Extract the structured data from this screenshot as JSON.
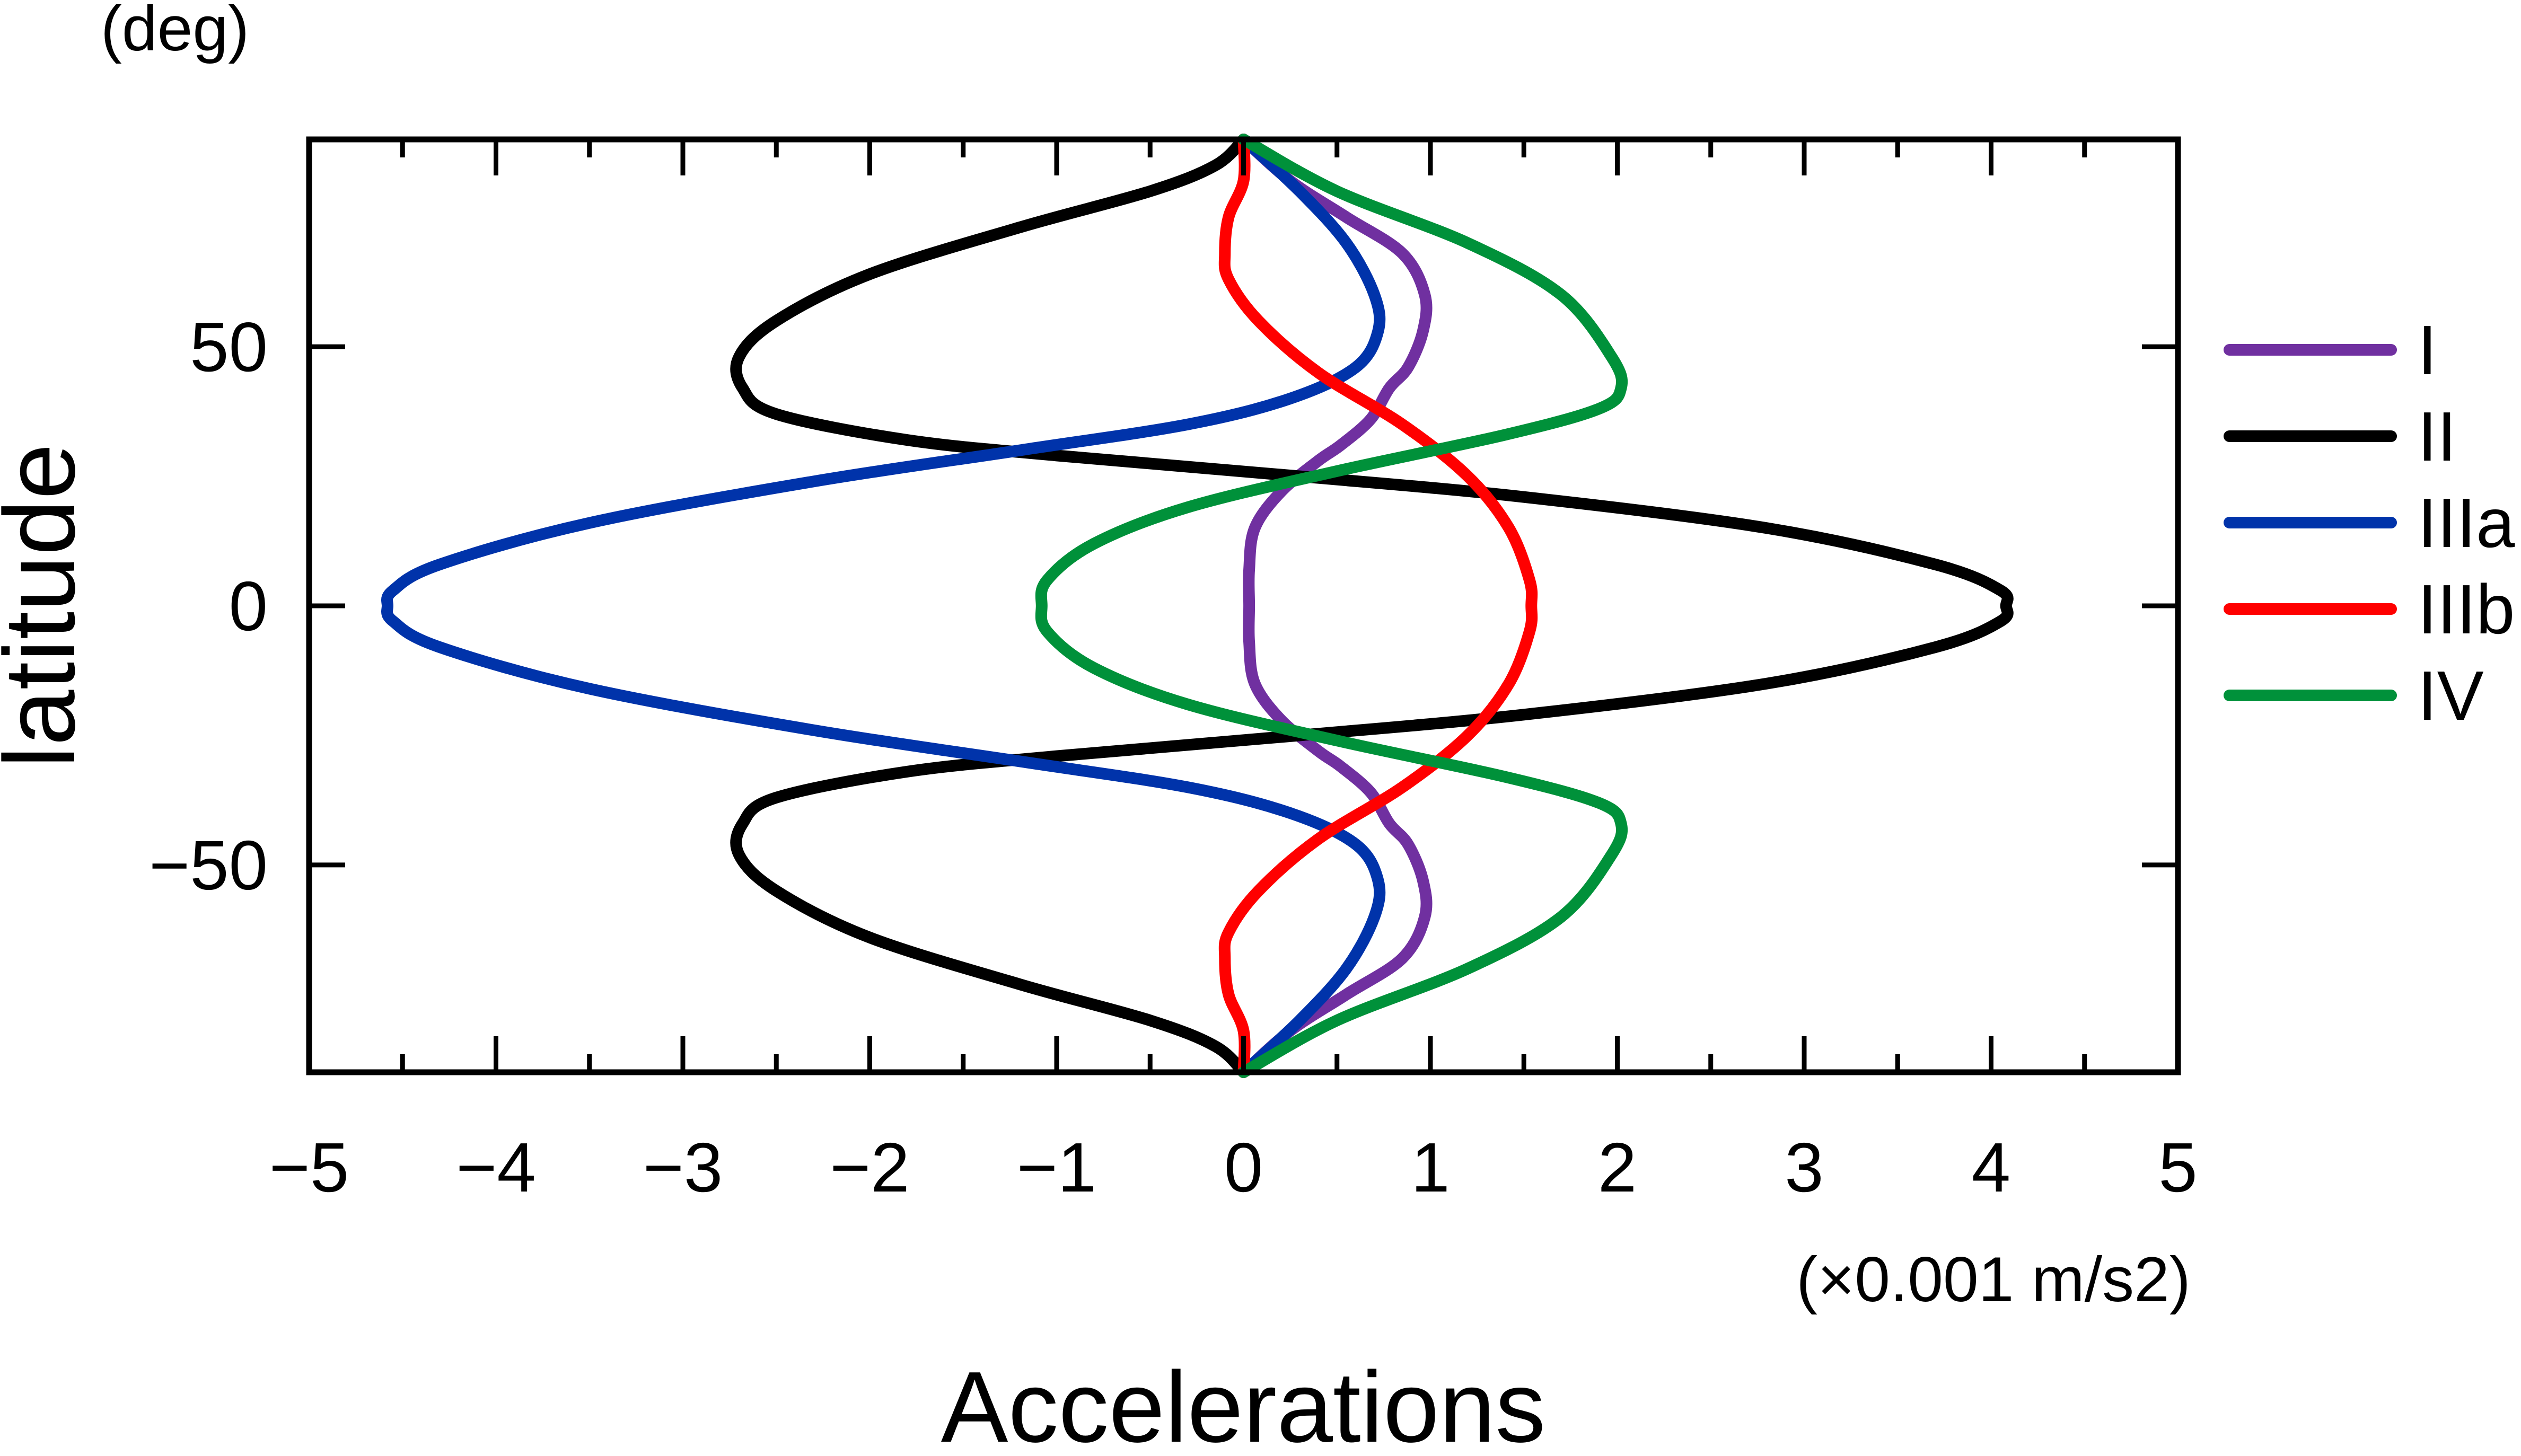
{
  "chart_data": {
    "type": "line",
    "title": "",
    "xlabel": "Accelerations",
    "x_unit": "(×0.001 m/s2)",
    "ylabel": "latitude",
    "y_unit": "(deg)",
    "xlim": [
      -5,
      5
    ],
    "ylim": [
      -90,
      90
    ],
    "x_ticks": [
      -5,
      -4,
      -3,
      -2,
      -1,
      0,
      1,
      2,
      3,
      4,
      5
    ],
    "x_tick_labels": [
      "−5",
      "−4",
      "−3",
      "−2",
      "−1",
      "0",
      "1",
      "2",
      "3",
      "4",
      "5"
    ],
    "y_ticks": [
      -50,
      0,
      50
    ],
    "y_tick_labels": [
      "−50",
      "0",
      "50"
    ],
    "grid": false,
    "legend_position": "right",
    "series": [
      {
        "name": "I",
        "color": "#7030a0",
        "points": [
          [
            0,
            90
          ],
          [
            0.25,
            82
          ],
          [
            0.55,
            75
          ],
          [
            0.85,
            68
          ],
          [
            0.97,
            60
          ],
          [
            0.96,
            53
          ],
          [
            0.88,
            46
          ],
          [
            0.78,
            42
          ],
          [
            0.68,
            36
          ],
          [
            0.52,
            31
          ],
          [
            0.4,
            28
          ],
          [
            0.2,
            22
          ],
          [
            0.06,
            15
          ],
          [
            0.03,
            7
          ],
          [
            0.03,
            0
          ],
          [
            0.03,
            -7
          ],
          [
            0.06,
            -15
          ],
          [
            0.2,
            -22
          ],
          [
            0.4,
            -28
          ],
          [
            0.52,
            -31
          ],
          [
            0.68,
            -36
          ],
          [
            0.78,
            -42
          ],
          [
            0.88,
            -46
          ],
          [
            0.96,
            -53
          ],
          [
            0.97,
            -60
          ],
          [
            0.85,
            -68
          ],
          [
            0.55,
            -75
          ],
          [
            0.25,
            -82
          ],
          [
            0,
            -90
          ]
        ]
      },
      {
        "name": "II",
        "color": "#000000",
        "points": [
          [
            0,
            90
          ],
          [
            -0.15,
            85
          ],
          [
            -0.5,
            80
          ],
          [
            -1.2,
            73
          ],
          [
            -2.0,
            64
          ],
          [
            -2.5,
            55
          ],
          [
            -2.7,
            48
          ],
          [
            -2.68,
            42
          ],
          [
            -2.5,
            37
          ],
          [
            -1.8,
            32
          ],
          [
            -1.0,
            29
          ],
          [
            0.3,
            25
          ],
          [
            1.5,
            21
          ],
          [
            2.8,
            15
          ],
          [
            3.7,
            8
          ],
          [
            4.05,
            3
          ],
          [
            4.08,
            0
          ],
          [
            4.05,
            -3
          ],
          [
            3.7,
            -8
          ],
          [
            2.8,
            -15
          ],
          [
            1.5,
            -21
          ],
          [
            0.3,
            -25
          ],
          [
            -1.0,
            -29
          ],
          [
            -1.8,
            -32
          ],
          [
            -2.5,
            -37
          ],
          [
            -2.68,
            -42
          ],
          [
            -2.7,
            -48
          ],
          [
            -2.5,
            -55
          ],
          [
            -2.0,
            -64
          ],
          [
            -1.2,
            -73
          ],
          [
            -0.5,
            -80
          ],
          [
            -0.15,
            -85
          ],
          [
            0,
            -90
          ]
        ]
      },
      {
        "name": "IIIa",
        "color": "#0033aa",
        "points": [
          [
            0,
            90
          ],
          [
            0.3,
            80
          ],
          [
            0.55,
            70
          ],
          [
            0.7,
            60
          ],
          [
            0.72,
            53
          ],
          [
            0.6,
            46
          ],
          [
            0.25,
            40
          ],
          [
            -0.3,
            35
          ],
          [
            -1.2,
            30
          ],
          [
            -2.3,
            24
          ],
          [
            -3.5,
            16
          ],
          [
            -4.3,
            8
          ],
          [
            -4.55,
            3
          ],
          [
            -4.58,
            0
          ],
          [
            -4.55,
            -3
          ],
          [
            -4.3,
            -8
          ],
          [
            -3.5,
            -16
          ],
          [
            -2.3,
            -24
          ],
          [
            -1.2,
            -30
          ],
          [
            -0.3,
            -35
          ],
          [
            0.25,
            -40
          ],
          [
            0.6,
            -46
          ],
          [
            0.72,
            -53
          ],
          [
            0.7,
            -60
          ],
          [
            0.55,
            -70
          ],
          [
            0.3,
            -80
          ],
          [
            0,
            -90
          ]
        ]
      },
      {
        "name": "IIIb",
        "color": "#ff0000",
        "points": [
          [
            0,
            90
          ],
          [
            0,
            82
          ],
          [
            -0.08,
            75
          ],
          [
            -0.1,
            68
          ],
          [
            -0.08,
            63
          ],
          [
            0.08,
            55
          ],
          [
            0.4,
            45
          ],
          [
            0.85,
            35
          ],
          [
            1.2,
            25
          ],
          [
            1.42,
            15
          ],
          [
            1.53,
            5
          ],
          [
            1.54,
            0
          ],
          [
            1.53,
            -5
          ],
          [
            1.42,
            -15
          ],
          [
            1.2,
            -25
          ],
          [
            0.85,
            -35
          ],
          [
            0.4,
            -45
          ],
          [
            0.08,
            -55
          ],
          [
            -0.08,
            -63
          ],
          [
            -0.1,
            -68
          ],
          [
            -0.08,
            -75
          ],
          [
            0,
            -82
          ],
          [
            0,
            -90
          ]
        ]
      },
      {
        "name": "IV",
        "color": "#00913a",
        "points": [
          [
            0,
            90
          ],
          [
            0.5,
            80
          ],
          [
            1.2,
            70
          ],
          [
            1.7,
            60
          ],
          [
            1.97,
            48
          ],
          [
            2.02,
            42
          ],
          [
            1.9,
            38
          ],
          [
            1.4,
            33
          ],
          [
            0.5,
            26
          ],
          [
            -0.3,
            19
          ],
          [
            -0.8,
            12
          ],
          [
            -1.05,
            5
          ],
          [
            -1.08,
            0
          ],
          [
            -1.05,
            -5
          ],
          [
            -0.8,
            -12
          ],
          [
            -0.3,
            -19
          ],
          [
            0.5,
            -26
          ],
          [
            1.4,
            -33
          ],
          [
            1.9,
            -38
          ],
          [
            2.02,
            -42
          ],
          [
            1.97,
            -48
          ],
          [
            1.7,
            -60
          ],
          [
            1.2,
            -70
          ],
          [
            0.5,
            -80
          ],
          [
            0,
            -90
          ]
        ]
      }
    ]
  }
}
